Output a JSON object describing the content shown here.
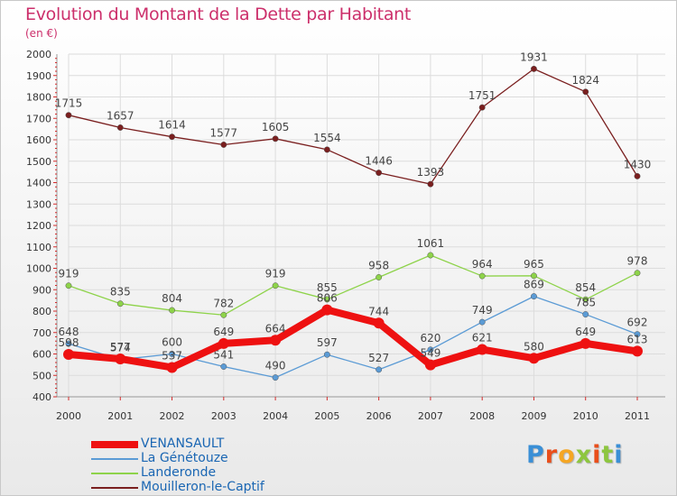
{
  "title": "Evolution du Montant de la Dette par Habitant",
  "subtitle": "(en €)",
  "logo_text": "Proxiti",
  "logo_colors": [
    "#3a8fd6",
    "#e94e1b",
    "#f5a623",
    "#8dc63f",
    "#e94e1b",
    "#8dc63f",
    "#3a8fd6"
  ],
  "chart_data": {
    "type": "line",
    "categories": [
      "2000",
      "2001",
      "2002",
      "2003",
      "2004",
      "2005",
      "2006",
      "2007",
      "2008",
      "2009",
      "2010",
      "2011"
    ],
    "ylim": [
      400,
      2000
    ],
    "yticks": [
      "400",
      "500",
      "600",
      "700",
      "800",
      "900",
      "1000",
      "1100",
      "1200",
      "1300",
      "1400",
      "1500",
      "1600",
      "1700",
      "1800",
      "1900",
      "2000"
    ],
    "grid": true,
    "legend_position": "bottom-left",
    "series": [
      {
        "name": "Mouilleron-le-Captif",
        "color": "#7a1f1f",
        "values": [
          1715,
          1657,
          1614,
          1577,
          1605,
          1554,
          1446,
          1393,
          1751,
          1931,
          1824,
          1430
        ],
        "labels": [
          "1715",
          "1657",
          "1614",
          "1577",
          "1605",
          "1554",
          "1446",
          "1393",
          "1751",
          "1931",
          "1824",
          "1430"
        ]
      },
      {
        "name": "Landeronde",
        "color": "#8ed34a",
        "values": [
          919,
          835,
          804,
          782,
          919,
          855,
          958,
          1061,
          964,
          965,
          854,
          978
        ],
        "labels": [
          "919",
          "835",
          "804",
          "782",
          "919",
          "855",
          "958",
          "1061",
          "964",
          "965",
          "854",
          "978"
        ]
      },
      {
        "name": "La Génétouze",
        "color": "#5b9bd5",
        "values": [
          648,
          574,
          600,
          541,
          490,
          597,
          527,
          620,
          749,
          869,
          785,
          692
        ],
        "labels": [
          "648",
          "574",
          "600",
          "541",
          "490",
          "597",
          "527",
          "620",
          "749",
          "869",
          "785",
          "692"
        ]
      },
      {
        "name": "VENANSAULT",
        "color": "#ee1111",
        "values": [
          598,
          577,
          537,
          649,
          664,
          806,
          744,
          549,
          621,
          580,
          649,
          613
        ],
        "labels": [
          "598",
          "577",
          "537",
          "649",
          "664",
          "806",
          "744",
          "549",
          "621",
          "580",
          "649",
          "613"
        ]
      }
    ]
  }
}
